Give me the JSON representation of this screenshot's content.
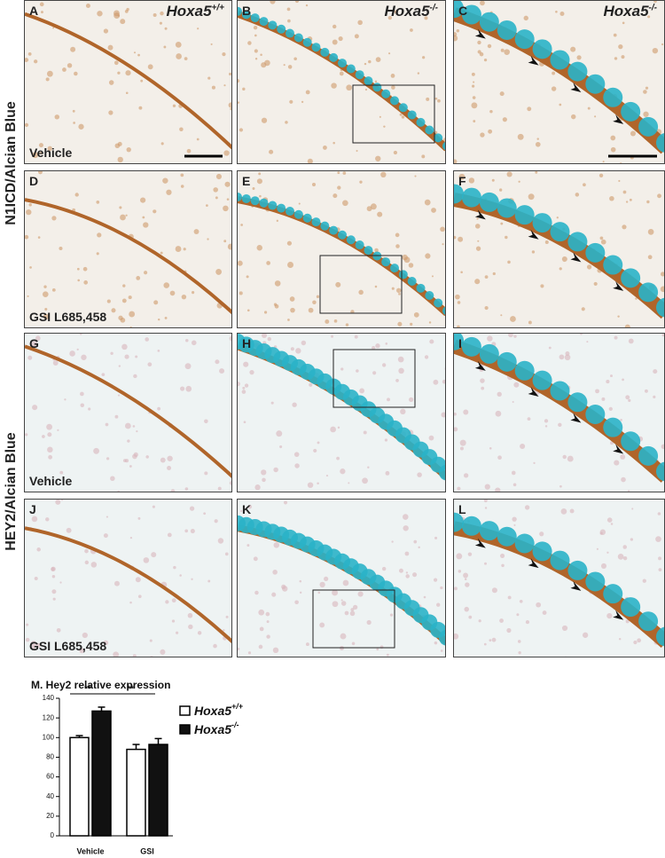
{
  "row_labels": [
    "N1ICD/Alcian Blue",
    "HEY2/Alcian Blue"
  ],
  "panels": [
    {
      "letter": "A",
      "header": "Hoxa5+/+",
      "label": "Vehicle"
    },
    {
      "letter": "B",
      "header": "Hoxa5-/-"
    },
    {
      "letter": "C",
      "header": "Hoxa5-/-"
    },
    {
      "letter": "D",
      "label": "GSI L685,458"
    },
    {
      "letter": "E"
    },
    {
      "letter": "F"
    },
    {
      "letter": "G",
      "label": "Vehicle"
    },
    {
      "letter": "H"
    },
    {
      "letter": "I"
    },
    {
      "letter": "J",
      "label": "GSI L685,458"
    },
    {
      "letter": "K"
    },
    {
      "letter": "L"
    }
  ],
  "chart_data": {
    "type": "bar",
    "title": "M. Hey2 relative expression",
    "categories": [
      "Vehicle",
      "GSI"
    ],
    "series": [
      {
        "name": "Hoxa5+/+",
        "color": "#ffffff",
        "values": [
          100,
          88
        ],
        "errors": [
          2,
          5
        ]
      },
      {
        "name": "Hoxa5-/-",
        "color": "#111111",
        "values": [
          127,
          93
        ],
        "errors": [
          4,
          6
        ]
      }
    ],
    "annotations": [
      "**",
      "**"
    ],
    "ylim": [
      0,
      140
    ],
    "yticks": [
      0,
      20,
      40,
      60,
      80,
      100,
      120,
      140
    ]
  }
}
